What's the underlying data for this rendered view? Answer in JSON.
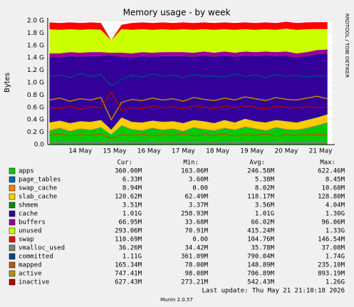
{
  "chart_data": {
    "type": "area",
    "title": "Memory usage - by week",
    "y_label": "Bytes",
    "side_text": "RRDTOOL / TOBI OETIKER",
    "x": [
      13.1,
      13.4,
      13.7,
      14.0,
      14.3,
      14.6,
      14.9,
      15.2,
      15.5,
      15.8,
      16.1,
      16.4,
      16.7,
      17.0,
      17.3,
      17.6,
      17.9,
      18.2,
      18.5,
      18.8,
      19.1,
      19.4,
      19.7,
      20.0,
      20.3,
      20.6,
      20.9,
      21.2
    ],
    "xlim": [
      13.05,
      21.33
    ],
    "xticks": [
      {
        "value": 14,
        "label": "14 May"
      },
      {
        "value": 15,
        "label": "15 May"
      },
      {
        "value": 16,
        "label": "16 May"
      },
      {
        "value": 17,
        "label": "17 May"
      },
      {
        "value": 18,
        "label": "18 May"
      },
      {
        "value": 19,
        "label": "19 May"
      },
      {
        "value": 20,
        "label": "20 May"
      },
      {
        "value": 21,
        "label": "21 May"
      }
    ],
    "ylim": [
      0,
      2.0
    ],
    "yticks": [
      {
        "value": 0,
        "label": "0.0"
      },
      {
        "value": 0.2,
        "label": "0.2 G"
      },
      {
        "value": 0.4,
        "label": "0.4 G"
      },
      {
        "value": 0.6,
        "label": "0.6 G"
      },
      {
        "value": 0.8,
        "label": "0.8 G"
      },
      {
        "value": 1.0,
        "label": "1.0 G"
      },
      {
        "value": 1.2,
        "label": "1.2 G"
      },
      {
        "value": 1.4,
        "label": "1.4 G"
      },
      {
        "value": 1.6,
        "label": "1.6 G"
      },
      {
        "value": 1.8,
        "label": "1.8 G"
      },
      {
        "value": 2.0,
        "label": "2.0 G"
      }
    ],
    "grid": true,
    "stat_headers": {
      "cur": "Cur:",
      "min": "Min:",
      "avg": "Avg:",
      "max": "Max:"
    },
    "series": [
      {
        "name": "apps",
        "color": "#00cc00",
        "draw": "stack",
        "values": [
          0.22,
          0.26,
          0.21,
          0.25,
          0.23,
          0.27,
          0.16,
          0.3,
          0.24,
          0.22,
          0.26,
          0.23,
          0.25,
          0.21,
          0.27,
          0.24,
          0.22,
          0.26,
          0.23,
          0.28,
          0.25,
          0.22,
          0.27,
          0.24,
          0.23,
          0.26,
          0.3,
          0.35
        ],
        "stats": {
          "cur": "360.00M",
          "min": "163.06M",
          "avg": "246.58M",
          "max": "622.46M"
        }
      },
      {
        "name": "page_tables",
        "color": "#0066b3",
        "draw": "stack",
        "values": [
          0.006,
          0.006,
          0.006,
          0.006,
          0.006,
          0.006,
          0.004,
          0.006,
          0.006,
          0.006,
          0.006,
          0.006,
          0.006,
          0.006,
          0.006,
          0.006,
          0.006,
          0.006,
          0.006,
          0.006,
          0.006,
          0.006,
          0.006,
          0.006,
          0.006,
          0.006,
          0.006,
          0.006
        ],
        "stats": {
          "cur": "6.33M",
          "min": "3.60M",
          "avg": "5.38M",
          "max": "8.45M"
        }
      },
      {
        "name": "swap_cache",
        "color": "#ff8000",
        "draw": "stack",
        "values": [
          0.008,
          0.008,
          0.008,
          0.008,
          0.008,
          0.008,
          0.004,
          0.009,
          0.008,
          0.008,
          0.008,
          0.008,
          0.008,
          0.008,
          0.008,
          0.008,
          0.008,
          0.008,
          0.008,
          0.008,
          0.008,
          0.008,
          0.008,
          0.008,
          0.008,
          0.008,
          0.009,
          0.009
        ],
        "stats": {
          "cur": "8.94M",
          "min": "0.00",
          "avg": "8.02M",
          "max": "10.68M"
        }
      },
      {
        "name": "slab_cache",
        "color": "#ffcc00",
        "draw": "stack",
        "values": [
          0.12,
          0.11,
          0.12,
          0.11,
          0.12,
          0.11,
          0.07,
          0.12,
          0.11,
          0.12,
          0.11,
          0.12,
          0.11,
          0.12,
          0.11,
          0.12,
          0.11,
          0.12,
          0.11,
          0.12,
          0.11,
          0.12,
          0.11,
          0.12,
          0.11,
          0.12,
          0.12,
          0.12
        ],
        "stats": {
          "cur": "120.62M",
          "min": "62.49M",
          "avg": "118.17M",
          "max": "128.80M"
        }
      },
      {
        "name": "shmem",
        "color": "#008f00",
        "draw": "stack",
        "values": [
          0.0035,
          0.0035,
          0.0035,
          0.0035,
          0.0035,
          0.0035,
          0.0034,
          0.0035,
          0.0035,
          0.0035,
          0.0035,
          0.0035,
          0.0035,
          0.0035,
          0.0035,
          0.0035,
          0.0035,
          0.0035,
          0.0035,
          0.0035,
          0.0035,
          0.0035,
          0.0035,
          0.0035,
          0.0035,
          0.0035,
          0.0035,
          0.0035
        ],
        "stats": {
          "cur": "3.51M",
          "min": "3.37M",
          "avg": "3.56M",
          "max": "4.04M"
        }
      },
      {
        "name": "cache",
        "color": "#330099",
        "draw": "stack",
        "values": [
          1.05,
          1.02,
          1.08,
          1.04,
          1.06,
          1.03,
          1.2,
          0.98,
          1.04,
          1.07,
          1.03,
          1.06,
          1.05,
          1.08,
          1.02,
          1.06,
          1.07,
          1.04,
          1.06,
          1.02,
          1.05,
          1.08,
          1.03,
          1.06,
          1.05,
          1.03,
          1.02,
          0.98
        ],
        "stats": {
          "cur": "1.01G",
          "min": "258.93M",
          "avg": "1.01G",
          "max": "1.30G"
        }
      },
      {
        "name": "buffers",
        "color": "#990099",
        "draw": "stack",
        "values": [
          0.065,
          0.065,
          0.065,
          0.065,
          0.065,
          0.065,
          0.04,
          0.065,
          0.065,
          0.065,
          0.065,
          0.065,
          0.065,
          0.065,
          0.065,
          0.065,
          0.065,
          0.065,
          0.065,
          0.065,
          0.065,
          0.065,
          0.065,
          0.065,
          0.065,
          0.065,
          0.067,
          0.067
        ],
        "stats": {
          "cur": "66.95M",
          "min": "33.68M",
          "avg": "66.02M",
          "max": "96.06M"
        }
      },
      {
        "name": "unused",
        "color": "#ccff00",
        "draw": "stack",
        "values": [
          0.39,
          0.38,
          0.37,
          0.37,
          0.37,
          0.36,
          0.2,
          0.38,
          0.38,
          0.37,
          0.37,
          0.37,
          0.36,
          0.37,
          0.37,
          0.36,
          0.37,
          0.36,
          0.37,
          0.36,
          0.36,
          0.36,
          0.36,
          0.37,
          0.38,
          0.37,
          0.34,
          0.33
        ],
        "stats": {
          "cur": "293.06M",
          "min": "70.91M",
          "avg": "415.24M",
          "max": "1.33G"
        }
      },
      {
        "name": "swap",
        "color": "#ff0000",
        "draw": "stack",
        "values": [
          0.11,
          0.11,
          0.11,
          0.11,
          0.11,
          0.11,
          0.0,
          0.07,
          0.11,
          0.11,
          0.11,
          0.11,
          0.11,
          0.11,
          0.11,
          0.11,
          0.11,
          0.11,
          0.11,
          0.11,
          0.11,
          0.11,
          0.11,
          0.11,
          0.11,
          0.11,
          0.11,
          0.11
        ],
        "stats": {
          "cur": "110.69M",
          "min": "0.00",
          "avg": "104.76M",
          "max": "146.54M"
        }
      },
      {
        "name": "vmalloc_used",
        "color": "#808080",
        "draw": "line",
        "values": [
          0.035,
          0.035,
          0.035,
          0.035,
          0.035,
          0.035,
          0.034,
          0.036,
          0.035,
          0.035,
          0.035,
          0.035,
          0.035,
          0.035,
          0.035,
          0.035,
          0.035,
          0.035,
          0.035,
          0.035,
          0.035,
          0.035,
          0.035,
          0.035,
          0.035,
          0.035,
          0.036,
          0.036
        ],
        "stats": {
          "cur": "36.26M",
          "min": "34.42M",
          "avg": "35.78M",
          "max": "37.08M"
        }
      },
      {
        "name": "committed",
        "color": "#00487d",
        "draw": "line",
        "values": [
          1.1,
          1.12,
          1.08,
          1.15,
          1.1,
          1.13,
          0.95,
          1.05,
          1.12,
          1.09,
          1.14,
          1.1,
          1.12,
          1.08,
          1.13,
          1.1,
          1.11,
          1.09,
          1.14,
          1.1,
          1.12,
          1.08,
          1.13,
          1.1,
          1.12,
          1.09,
          1.11,
          1.11
        ],
        "stats": {
          "cur": "1.11G",
          "min": "361.09M",
          "avg": "790.04M",
          "max": "1.74G"
        }
      },
      {
        "name": "mapped",
        "color": "#b35a00",
        "draw": "line",
        "values": [
          0.15,
          0.17,
          0.14,
          0.16,
          0.15,
          0.17,
          0.1,
          0.16,
          0.15,
          0.17,
          0.14,
          0.16,
          0.15,
          0.17,
          0.14,
          0.16,
          0.15,
          0.17,
          0.14,
          0.16,
          0.15,
          0.17,
          0.14,
          0.16,
          0.15,
          0.16,
          0.16,
          0.16
        ],
        "stats": {
          "cur": "165.34M",
          "min": "78.00M",
          "avg": "148.89M",
          "max": "235.10M"
        }
      },
      {
        "name": "active",
        "color": "#b38f00",
        "draw": "line",
        "values": [
          0.72,
          0.75,
          0.7,
          0.74,
          0.72,
          0.76,
          0.4,
          0.68,
          0.73,
          0.71,
          0.75,
          0.72,
          0.74,
          0.7,
          0.76,
          0.73,
          0.71,
          0.75,
          0.72,
          0.77,
          0.74,
          0.71,
          0.76,
          0.73,
          0.72,
          0.75,
          0.78,
          0.74
        ],
        "stats": {
          "cur": "747.41M",
          "min": "98.08M",
          "avg": "706.89M",
          "max": "893.19M"
        }
      },
      {
        "name": "inactive",
        "color": "#b30000",
        "draw": "line",
        "values": [
          0.6,
          0.58,
          0.62,
          0.57,
          0.61,
          0.59,
          0.85,
          0.55,
          0.6,
          0.58,
          0.62,
          0.59,
          0.61,
          0.57,
          0.63,
          0.6,
          0.58,
          0.62,
          0.59,
          0.63,
          0.6,
          0.58,
          0.62,
          0.6,
          0.59,
          0.61,
          0.6,
          0.6
        ],
        "stats": {
          "cur": "627.43M",
          "min": "273.21M",
          "avg": "542.43M",
          "max": "1.26G"
        }
      }
    ],
    "last_update": "Last update: Thu May 21 21:10:18 2026",
    "footer": "Munin 2.0.57"
  }
}
